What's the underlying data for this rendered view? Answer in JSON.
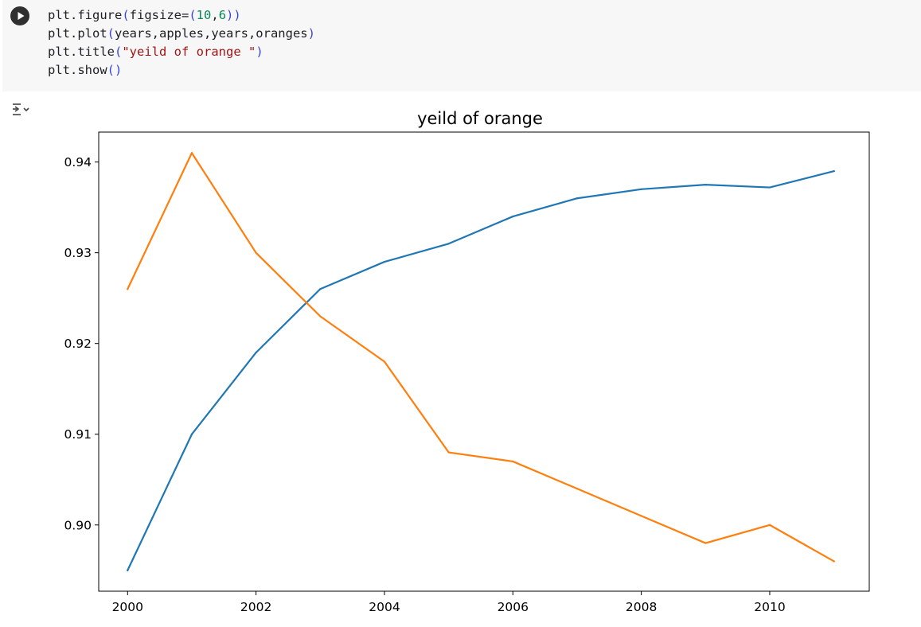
{
  "cell": {
    "run_button_icon": "play-icon",
    "code_lines": [
      [
        {
          "t": "plt.figure",
          "c": ""
        },
        {
          "t": "(",
          "c": "paren"
        },
        {
          "t": "figsize=",
          "c": ""
        },
        {
          "t": "(",
          "c": "paren"
        },
        {
          "t": "10",
          "c": "num"
        },
        {
          "t": ",",
          "c": ""
        },
        {
          "t": "6",
          "c": "num"
        },
        {
          "t": "))",
          "c": "paren"
        }
      ],
      [
        {
          "t": "plt.plot",
          "c": ""
        },
        {
          "t": "(",
          "c": "paren"
        },
        {
          "t": "years,apples,years,oranges",
          "c": ""
        },
        {
          "t": ")",
          "c": "paren"
        }
      ],
      [
        {
          "t": "plt.title",
          "c": ""
        },
        {
          "t": "(",
          "c": "paren"
        },
        {
          "t": "\"yeild of orange \"",
          "c": "str"
        },
        {
          "t": ")",
          "c": "paren"
        }
      ],
      [
        {
          "t": "plt.show",
          "c": ""
        },
        {
          "t": "()",
          "c": "paren"
        }
      ]
    ]
  },
  "output": {
    "toggle_icon": "output-toggle-icon"
  },
  "chart_data": {
    "type": "line",
    "title": "yeild of orange",
    "xlabel": "",
    "ylabel": "",
    "x": [
      2000,
      2001,
      2002,
      2003,
      2004,
      2005,
      2006,
      2007,
      2008,
      2009,
      2010,
      2011
    ],
    "series": [
      {
        "color": "#1f77b4",
        "values": [
          0.895,
          0.91,
          0.919,
          0.926,
          0.929,
          0.931,
          0.934,
          0.936,
          0.937,
          0.9375,
          0.9372,
          0.939
        ]
      },
      {
        "color": "#ff7f0e",
        "values": [
          0.926,
          0.941,
          0.93,
          0.923,
          0.918,
          0.908,
          0.907,
          0.904,
          0.901,
          0.898,
          0.9,
          0.896
        ]
      }
    ],
    "xlim": [
      1999.55,
      2011.55
    ],
    "ylim": [
      0.8927,
      0.9433
    ],
    "xticks": [
      2000,
      2002,
      2004,
      2006,
      2008,
      2010
    ],
    "xtick_labels": [
      "2000",
      "2002",
      "2004",
      "2006",
      "2008",
      "2010"
    ],
    "yticks": [
      0.9,
      0.91,
      0.92,
      0.93,
      0.94
    ],
    "ytick_labels": [
      "0.90",
      "0.91",
      "0.92",
      "0.93",
      "0.94"
    ],
    "grid": false,
    "legend": false
  }
}
